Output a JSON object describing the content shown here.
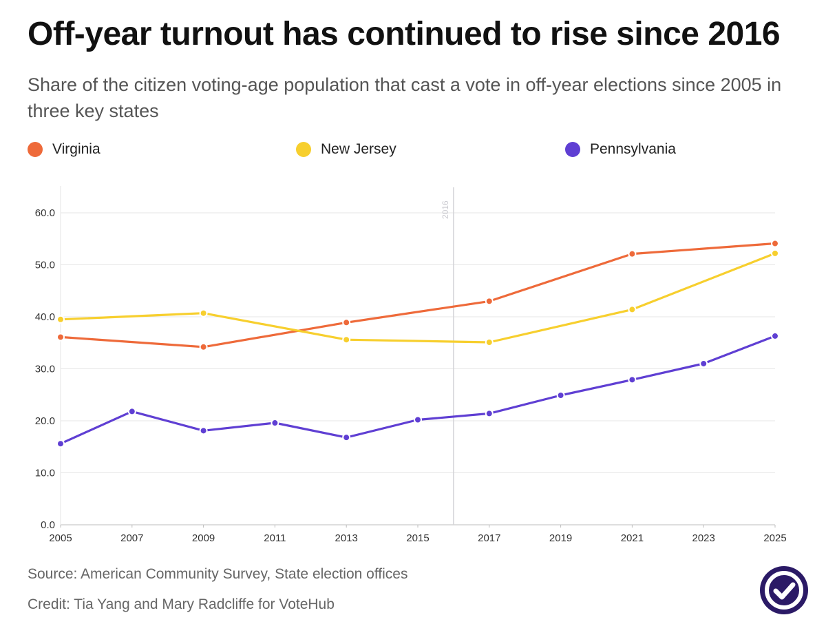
{
  "title": "Off-year turnout has continued to rise since 2016",
  "subtitle": "Share of the citizen voting-age population that cast a vote in off-year elections since 2005 in three key states",
  "legend": [
    {
      "label": "Virginia",
      "color": "#ee6a3a"
    },
    {
      "label": "New Jersey",
      "color": "#f7cf2e"
    },
    {
      "label": "Pennsylvania",
      "color": "#5f3fd3"
    }
  ],
  "chart_data": {
    "type": "line",
    "xlim": [
      2005,
      2025
    ],
    "ylim": [
      0,
      60
    ],
    "x_ticks": [
      "2005",
      "2007",
      "2009",
      "2011",
      "2013",
      "2015",
      "2017",
      "2019",
      "2021",
      "2023",
      "2025"
    ],
    "y_ticks": [
      "0.0",
      "10.0",
      "20.0",
      "30.0",
      "40.0",
      "50.0",
      "60.0"
    ],
    "grid": true,
    "legend_position": "top",
    "annotation": {
      "x": 2016,
      "label": "2016"
    },
    "series": [
      {
        "name": "Virginia",
        "color": "#ee6a3a",
        "x": [
          2005,
          2009,
          2013,
          2017,
          2021,
          2025
        ],
        "y": [
          36.1,
          34.2,
          38.9,
          43.0,
          52.1,
          54.1
        ]
      },
      {
        "name": "New Jersey",
        "color": "#f7cf2e",
        "x": [
          2005,
          2009,
          2013,
          2017,
          2021,
          2025
        ],
        "y": [
          39.5,
          40.7,
          35.6,
          35.1,
          41.4,
          52.2
        ]
      },
      {
        "name": "Pennsylvania",
        "color": "#5f3fd3",
        "x": [
          2005,
          2007,
          2009,
          2011,
          2013,
          2015,
          2017,
          2019,
          2021,
          2023,
          2025
        ],
        "y": [
          15.6,
          21.8,
          18.1,
          19.6,
          16.8,
          20.2,
          21.4,
          24.9,
          27.9,
          31.0,
          36.3
        ]
      }
    ]
  },
  "footer": {
    "source": "Source: American Community Survey, State election offices",
    "credit": "Credit: Tia Yang and Mary Radcliffe for VoteHub"
  },
  "badge": {
    "icon": "checkmark-icon",
    "color": "#2b1a66"
  }
}
